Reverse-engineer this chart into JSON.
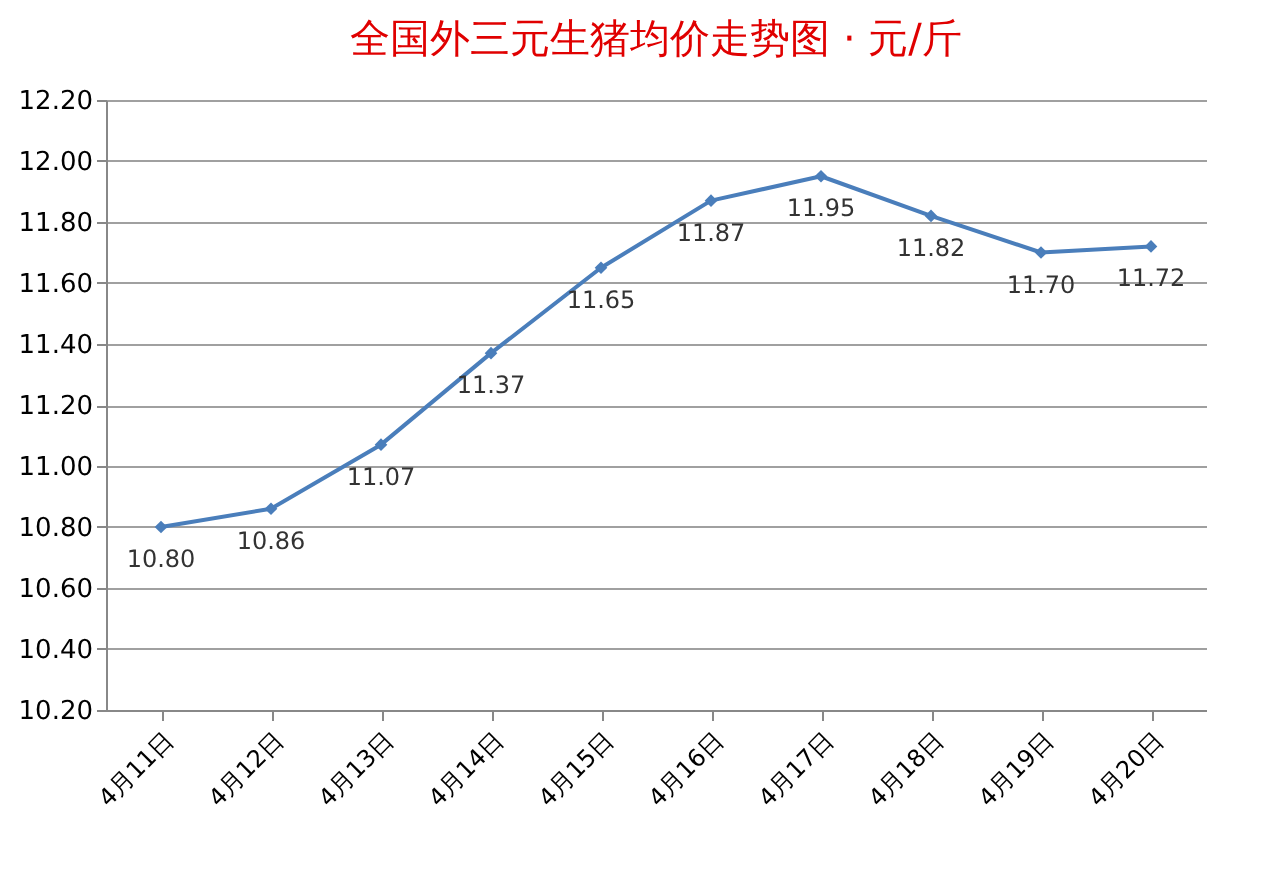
{
  "chart_data": {
    "type": "line",
    "title": "全国外三元生猪均价走势图 · 元/斤",
    "categories": [
      "4月11日",
      "4月12日",
      "4月13日",
      "4月14日",
      "4月15日",
      "4月16日",
      "4月17日",
      "4月18日",
      "4月19日",
      "4月20日"
    ],
    "series": [
      {
        "color": "#4a7ebb",
        "values": [
          10.8,
          10.86,
          11.07,
          11.37,
          11.65,
          11.87,
          11.95,
          11.82,
          11.7,
          11.72
        ],
        "value_labels": [
          "10.80",
          "10.86",
          "11.07",
          "11.37",
          "11.65",
          "11.87",
          "11.95",
          "11.82",
          "11.70",
          "11.72"
        ]
      }
    ],
    "ylim": [
      10.2,
      12.2
    ],
    "yticks": [
      {
        "value": 10.2,
        "label": "10.20"
      },
      {
        "value": 10.4,
        "label": "10.40"
      },
      {
        "value": 10.6,
        "label": "10.60"
      },
      {
        "value": 10.8,
        "label": "10.80"
      },
      {
        "value": 11.0,
        "label": "11.00"
      },
      {
        "value": 11.2,
        "label": "11.20"
      },
      {
        "value": 11.4,
        "label": "11.40"
      },
      {
        "value": 11.6,
        "label": "11.60"
      },
      {
        "value": 11.8,
        "label": "11.80"
      },
      {
        "value": 12.0,
        "label": "12.00"
      },
      {
        "value": 12.2,
        "label": "12.20"
      }
    ],
    "grid": "y",
    "marker": "diamond",
    "line_style": "solid"
  }
}
